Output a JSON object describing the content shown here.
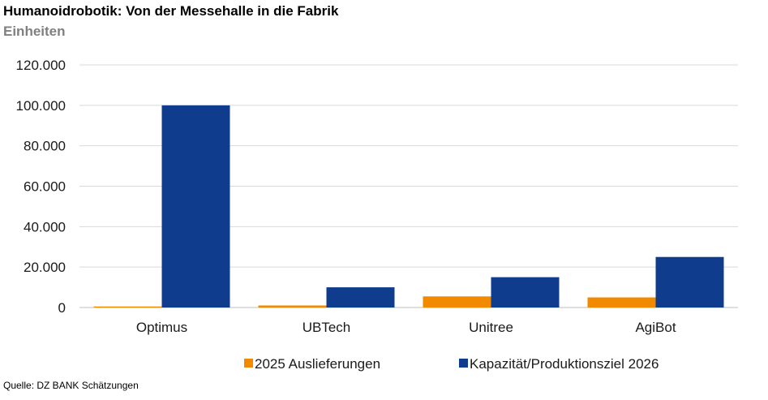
{
  "title": "Humanoidrobotik: Von der Messehalle in die Fabrik",
  "subtitle": "Einheiten",
  "source": "Quelle: DZ BANK Schätzungen",
  "colors": {
    "series_2025": "#f28a00",
    "series_2026": "#0f3c8c",
    "grid": "#d9d9d9",
    "axis": "#bfbfbf"
  },
  "chart_data": {
    "type": "bar",
    "categories": [
      "Optimus",
      "UBTech",
      "Unitree",
      "AgiBot"
    ],
    "series": [
      {
        "name": "2025 Auslieferungen",
        "values": [
          500,
          1000,
          5500,
          5000
        ]
      },
      {
        "name": "Kapazität/Produktionsziel 2026",
        "values": [
          100000,
          10000,
          15000,
          25000
        ]
      }
    ],
    "ylim": [
      0,
      120000
    ],
    "yticks": [
      0,
      20000,
      40000,
      60000,
      80000,
      100000,
      120000
    ],
    "ytick_labels": [
      "0",
      "20.000",
      "40.000",
      "60.000",
      "80.000",
      "100.000",
      "120.000"
    ],
    "grid": true,
    "legend_position": "bottom"
  }
}
